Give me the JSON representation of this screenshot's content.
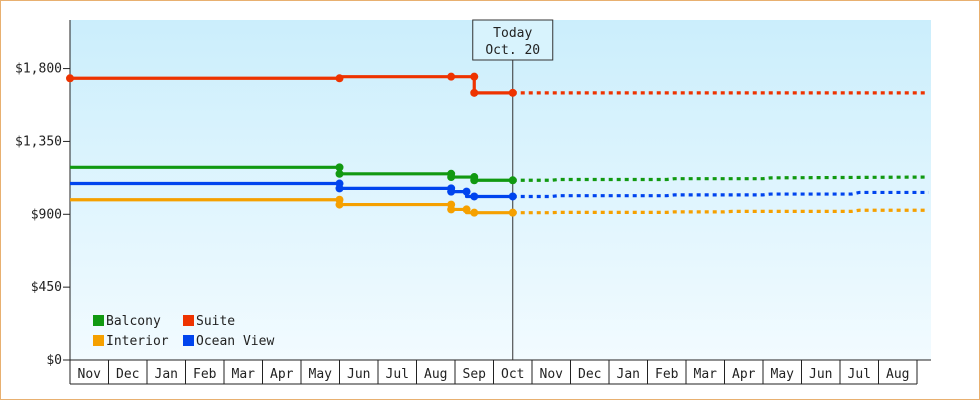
{
  "chart_data": {
    "type": "line",
    "title": "",
    "xlabel": "",
    "ylabel": "",
    "y_ticks": [
      "$0",
      "$450",
      "$900",
      "$1,350",
      "$1,800"
    ],
    "ylim": [
      0,
      2100
    ],
    "months": [
      "Nov",
      "Dec",
      "Jan",
      "Feb",
      "Mar",
      "Apr",
      "May",
      "Jun",
      "Jul",
      "Aug",
      "Sep",
      "Oct",
      "Nov",
      "Dec",
      "Jan",
      "Feb",
      "Mar",
      "Apr",
      "May",
      "Jun",
      "Jul",
      "Aug"
    ],
    "today": {
      "label": "Today",
      "date_label": "Oct. 20",
      "x": 11.5
    },
    "legend_placement": "bottom-left",
    "series": [
      {
        "name": "Balcony",
        "color": "#119911",
        "history": [
          [
            0,
            1190
          ],
          [
            7,
            1190
          ],
          [
            7,
            1150
          ],
          [
            9.9,
            1150
          ],
          [
            9.9,
            1130
          ],
          [
            10.5,
            1130
          ],
          [
            10.5,
            1110
          ],
          [
            11.5,
            1110
          ]
        ],
        "history_markers": [
          [
            7,
            1190
          ],
          [
            7,
            1150
          ],
          [
            9.9,
            1150
          ],
          [
            9.9,
            1130
          ],
          [
            10.5,
            1130
          ],
          [
            10.5,
            1110
          ],
          [
            11.5,
            1110
          ]
        ],
        "forecast": [
          [
            11.5,
            1110
          ],
          [
            12.5,
            1110
          ],
          [
            12.7,
            1115
          ],
          [
            15.5,
            1115
          ],
          [
            15.7,
            1120
          ],
          [
            18,
            1120
          ],
          [
            18.2,
            1125
          ],
          [
            22.3,
            1130
          ]
        ]
      },
      {
        "name": "Suite",
        "color": "#ee3300",
        "history": [
          [
            0,
            1740
          ],
          [
            7,
            1740
          ],
          [
            7,
            1750
          ],
          [
            10.5,
            1750
          ],
          [
            10.5,
            1650
          ],
          [
            11.5,
            1650
          ]
        ],
        "history_markers": [
          [
            0,
            1740
          ],
          [
            7,
            1740
          ],
          [
            9.9,
            1750
          ],
          [
            10.5,
            1750
          ],
          [
            10.5,
            1650
          ],
          [
            11.5,
            1650
          ]
        ],
        "forecast": [
          [
            11.5,
            1650
          ],
          [
            22.3,
            1650
          ]
        ]
      },
      {
        "name": "Interior",
        "color": "#f5a000",
        "history": [
          [
            0,
            990
          ],
          [
            7,
            990
          ],
          [
            7,
            960
          ],
          [
            9.9,
            960
          ],
          [
            9.9,
            930
          ],
          [
            10.3,
            930
          ],
          [
            10.3,
            910
          ],
          [
            11.5,
            910
          ]
        ],
        "history_markers": [
          [
            7,
            990
          ],
          [
            7,
            960
          ],
          [
            9.9,
            960
          ],
          [
            9.9,
            930
          ],
          [
            10.3,
            930
          ],
          [
            10.5,
            910
          ],
          [
            11.5,
            910
          ]
        ],
        "forecast": [
          [
            11.5,
            910
          ],
          [
            12.5,
            910
          ],
          [
            12.7,
            912
          ],
          [
            15.5,
            912
          ],
          [
            15.7,
            915
          ],
          [
            17,
            915
          ],
          [
            17.2,
            918
          ],
          [
            20.3,
            918
          ],
          [
            20.5,
            925
          ],
          [
            22.3,
            925
          ]
        ]
      },
      {
        "name": "Ocean View",
        "color": "#0044ee",
        "history": [
          [
            0,
            1090
          ],
          [
            7,
            1090
          ],
          [
            7,
            1060
          ],
          [
            9.9,
            1060
          ],
          [
            9.9,
            1040
          ],
          [
            10.3,
            1040
          ],
          [
            10.3,
            1010
          ],
          [
            11.5,
            1010
          ]
        ],
        "history_markers": [
          [
            7,
            1090
          ],
          [
            7,
            1060
          ],
          [
            9.9,
            1060
          ],
          [
            9.9,
            1040
          ],
          [
            10.3,
            1040
          ],
          [
            10.5,
            1010
          ],
          [
            11.5,
            1010
          ]
        ],
        "forecast": [
          [
            11.5,
            1010
          ],
          [
            12.5,
            1010
          ],
          [
            12.7,
            1015
          ],
          [
            15.5,
            1015
          ],
          [
            15.7,
            1020
          ],
          [
            18,
            1020
          ],
          [
            18.2,
            1025
          ],
          [
            20.3,
            1025
          ],
          [
            20.5,
            1035
          ],
          [
            22.3,
            1035
          ]
        ]
      }
    ],
    "colors": {
      "plot_top": "#cbeefc",
      "plot_bottom": "#f2fbff",
      "border": "#e8b070"
    }
  }
}
